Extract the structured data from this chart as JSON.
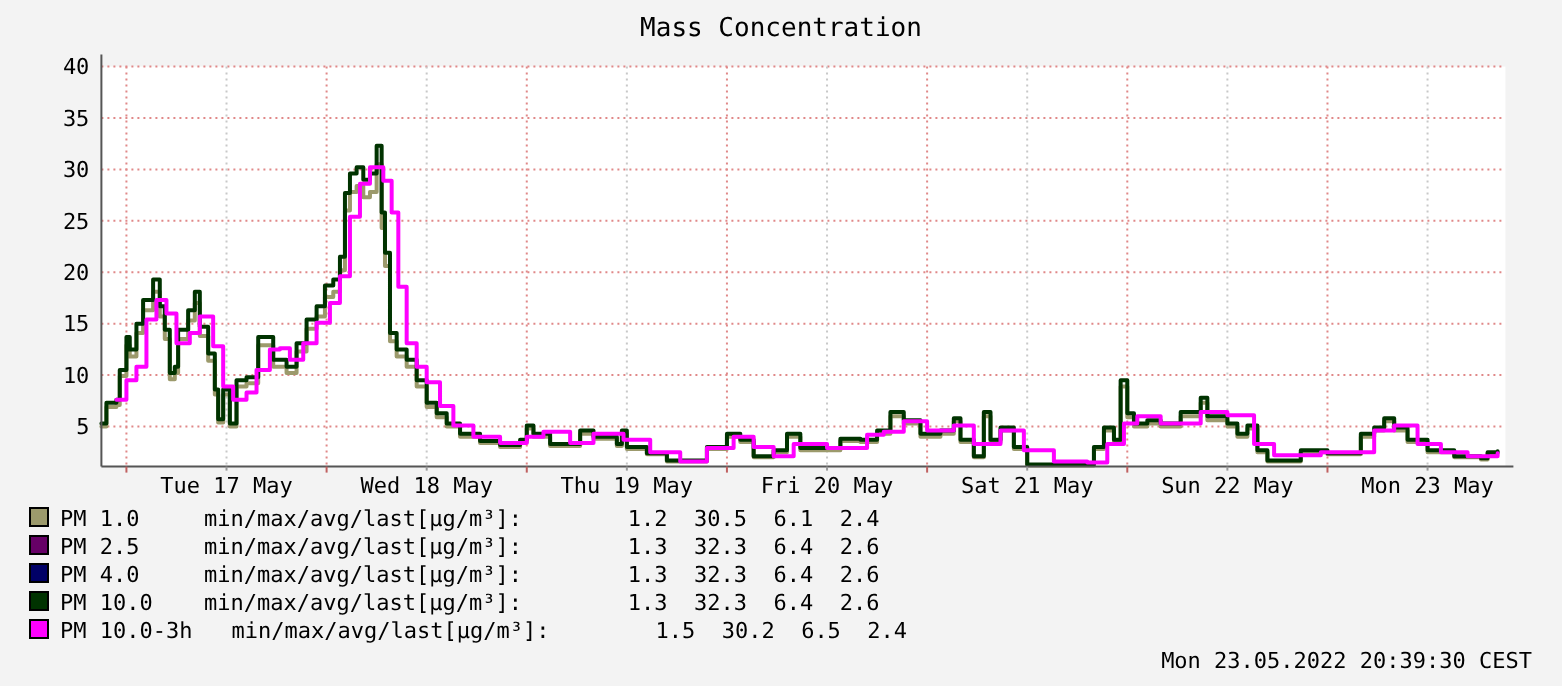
{
  "chart_data": {
    "type": "step",
    "title": "Mass Concentration",
    "xlim": [
      "2022-05-16T21:00",
      "2022-05-23T21:20"
    ],
    "xticks": [
      {
        "value": "2022-05-17T00:00",
        "label": null
      },
      {
        "value": "2022-05-17T12:00",
        "label": "Tue 17 May"
      },
      {
        "value": "2022-05-18T00:00",
        "label": null
      },
      {
        "value": "2022-05-18T12:00",
        "label": "Wed 18 May"
      },
      {
        "value": "2022-05-19T00:00",
        "label": null
      },
      {
        "value": "2022-05-19T12:00",
        "label": "Thu 19 May"
      },
      {
        "value": "2022-05-20T00:00",
        "label": null
      },
      {
        "value": "2022-05-20T12:00",
        "label": "Fri 20 May"
      },
      {
        "value": "2022-05-21T00:00",
        "label": null
      },
      {
        "value": "2022-05-21T12:00",
        "label": "Sat 21 May"
      },
      {
        "value": "2022-05-22T00:00",
        "label": null
      },
      {
        "value": "2022-05-22T12:00",
        "label": "Sun 22 May"
      },
      {
        "value": "2022-05-23T00:00",
        "label": null
      },
      {
        "value": "2022-05-23T12:00",
        "label": "Mon 23 May"
      }
    ],
    "ylim": [
      1.1,
      40
    ],
    "yticks": [
      5,
      10,
      15,
      20,
      25,
      30,
      35,
      40
    ],
    "grid": true,
    "legend": "bottom",
    "x": [
      "2022-05-16T21:00",
      "2022-05-16T21:36",
      "2022-05-16T22:48",
      "2022-05-16T23:12",
      "2022-05-17T00:00",
      "2022-05-17T00:24",
      "2022-05-17T01:12",
      "2022-05-17T02:00",
      "2022-05-17T03:12",
      "2022-05-17T04:00",
      "2022-05-17T04:36",
      "2022-05-17T05:12",
      "2022-05-17T05:48",
      "2022-05-17T06:12",
      "2022-05-17T07:24",
      "2022-05-17T08:12",
      "2022-05-17T08:48",
      "2022-05-17T09:48",
      "2022-05-17T10:36",
      "2022-05-17T11:00",
      "2022-05-17T11:36",
      "2022-05-17T12:24",
      "2022-05-17T13:12",
      "2022-05-17T14:24",
      "2022-05-17T15:48",
      "2022-05-17T17:36",
      "2022-05-17T19:12",
      "2022-05-17T20:24",
      "2022-05-17T21:36",
      "2022-05-17T22:48",
      "2022-05-17T23:48",
      "2022-05-18T00:48",
      "2022-05-18T01:36",
      "2022-05-18T02:12",
      "2022-05-18T02:48",
      "2022-05-18T03:36",
      "2022-05-18T04:24",
      "2022-05-18T05:12",
      "2022-05-18T06:00",
      "2022-05-18T06:36",
      "2022-05-18T07:00",
      "2022-05-18T07:36",
      "2022-05-18T08:24",
      "2022-05-18T09:36",
      "2022-05-18T10:48",
      "2022-05-18T12:00",
      "2022-05-18T13:12",
      "2022-05-18T14:24",
      "2022-05-18T16:00",
      "2022-05-18T18:24",
      "2022-05-18T20:48",
      "2022-05-18T23:12",
      "2022-05-19T00:00",
      "2022-05-19T00:48",
      "2022-05-19T02:48",
      "2022-05-19T06:24",
      "2022-05-19T08:00",
      "2022-05-19T10:48",
      "2022-05-19T11:24",
      "2022-05-19T12:00",
      "2022-05-19T14:24",
      "2022-05-19T16:48",
      "2022-05-19T21:36",
      "2022-05-20T00:00",
      "2022-05-20T01:36",
      "2022-05-20T03:12",
      "2022-05-20T05:36",
      "2022-05-20T07:12",
      "2022-05-20T08:48",
      "2022-05-20T13:36",
      "2022-05-20T16:00",
      "2022-05-20T18:00",
      "2022-05-20T19:36",
      "2022-05-20T21:12",
      "2022-05-20T23:12",
      "2022-05-21T01:36",
      "2022-05-21T03:12",
      "2022-05-21T04:00",
      "2022-05-21T05:36",
      "2022-05-21T06:48",
      "2022-05-21T07:36",
      "2022-05-21T08:48",
      "2022-05-21T10:24",
      "2022-05-21T12:00",
      "2022-05-21T20:00",
      "2022-05-21T21:12",
      "2022-05-21T22:24",
      "2022-05-21T23:12",
      "2022-05-22T00:00",
      "2022-05-22T00:48",
      "2022-05-22T02:24",
      "2022-05-22T04:00",
      "2022-05-22T06:24",
      "2022-05-22T08:48",
      "2022-05-22T09:36",
      "2022-05-22T12:00",
      "2022-05-22T13:12",
      "2022-05-22T14:24",
      "2022-05-22T15:36",
      "2022-05-22T16:48",
      "2022-05-22T20:48",
      "2022-05-23T00:00",
      "2022-05-23T04:00",
      "2022-05-23T05:36",
      "2022-05-23T06:48",
      "2022-05-23T08:00",
      "2022-05-23T09:36",
      "2022-05-23T12:00",
      "2022-05-23T15:12",
      "2022-05-23T18:24",
      "2022-05-23T19:12",
      "2022-05-23T20:24"
    ],
    "series": [
      {
        "name": "PM 1.0",
        "color": "#9c9a6c",
        "values": [
          5.0,
          6.9,
          7.1,
          9.9,
          12.9,
          11.8,
          14.1,
          16.3,
          18.1,
          15.7,
          13.5,
          9.6,
          10.2,
          13.5,
          15.3,
          17.0,
          13.8,
          11.4,
          8.1,
          5.4,
          8.1,
          5.0,
          8.9,
          9.2,
          12.9,
          10.8,
          10.2,
          12.3,
          14.5,
          15.7,
          17.6,
          18.1,
          20.2,
          26.0,
          27.8,
          28.4,
          27.3,
          27.8,
          30.5,
          24.3,
          20.6,
          13.3,
          11.8,
          10.8,
          8.9,
          6.9,
          5.9,
          5.0,
          4.0,
          3.4,
          3.0,
          3.5,
          4.8,
          4.0,
          3.1,
          4.3,
          3.8,
          3.1,
          4.3,
          2.8,
          2.3,
          1.6,
          2.8,
          4.0,
          3.5,
          2.0,
          2.5,
          4.0,
          2.7,
          3.6,
          3.5,
          4.3,
          6.0,
          5.3,
          4.0,
          4.3,
          5.5,
          3.5,
          2.0,
          6.0,
          3.5,
          4.6,
          2.8,
          1.2,
          2.8,
          4.6,
          3.5,
          8.9,
          5.9,
          5.0,
          5.3,
          5.0,
          6.0,
          7.3,
          5.6,
          5.0,
          4.0,
          4.8,
          2.5,
          1.6,
          2.5,
          2.3,
          4.0,
          4.6,
          5.5,
          4.6,
          3.5,
          2.5,
          2.0,
          1.8,
          2.4,
          2.4
        ]
      },
      {
        "name": "PM 2.5",
        "color": "#660066",
        "values": [
          null,
          null,
          null,
          null,
          null,
          null,
          null,
          null,
          null,
          null,
          null,
          null,
          null,
          null,
          null,
          null,
          null,
          null,
          null,
          null,
          null,
          null,
          null,
          null,
          null,
          null,
          null,
          null,
          null,
          null,
          null,
          null,
          null,
          null,
          null,
          null,
          null,
          null,
          null,
          null,
          null,
          null,
          null,
          null,
          null,
          null,
          null,
          null,
          null,
          null,
          null,
          null,
          null,
          null,
          null,
          null,
          null,
          null,
          null,
          null,
          null,
          null,
          null,
          null,
          null,
          null,
          null,
          null,
          null,
          null,
          null,
          null,
          null,
          null,
          null,
          null,
          null,
          null,
          null,
          null,
          null,
          null,
          null,
          null,
          null,
          null,
          null,
          null,
          null,
          null,
          null,
          null,
          null,
          null,
          null,
          null,
          null,
          null,
          null,
          null,
          null,
          null,
          null,
          null,
          null,
          null,
          null,
          null,
          null,
          null,
          null,
          null
        ]
      },
      {
        "name": "PM 4.0",
        "color": "#000066",
        "values": [
          null,
          null,
          null,
          null,
          null,
          null,
          null,
          null,
          null,
          null,
          null,
          null,
          null,
          null,
          null,
          null,
          null,
          null,
          null,
          null,
          null,
          null,
          null,
          null,
          null,
          null,
          null,
          null,
          null,
          null,
          null,
          null,
          null,
          null,
          null,
          null,
          null,
          null,
          null,
          null,
          null,
          null,
          null,
          null,
          null,
          null,
          null,
          null,
          null,
          null,
          null,
          null,
          null,
          null,
          null,
          null,
          null,
          null,
          null,
          null,
          null,
          null,
          null,
          null,
          null,
          null,
          null,
          null,
          null,
          null,
          null,
          null,
          null,
          null,
          null,
          null,
          null,
          null,
          null,
          null,
          null,
          null,
          null,
          null,
          null,
          null,
          null,
          null,
          null,
          null,
          null,
          null,
          null,
          null,
          null,
          null,
          null,
          null,
          null,
          null,
          null,
          null,
          null,
          null,
          null,
          null,
          null,
          null,
          null,
          null,
          null,
          null
        ]
      },
      {
        "name": "PM 10.0",
        "color": "#003300",
        "values": [
          5.3,
          7.3,
          7.6,
          10.5,
          13.7,
          12.5,
          15.0,
          17.3,
          19.3,
          16.7,
          14.4,
          10.2,
          10.8,
          14.4,
          16.3,
          18.1,
          14.7,
          12.1,
          8.6,
          5.7,
          8.6,
          5.3,
          9.5,
          9.8,
          13.7,
          11.5,
          10.8,
          13.1,
          15.4,
          16.7,
          18.7,
          19.3,
          21.5,
          27.7,
          29.6,
          30.2,
          29.0,
          29.6,
          32.3,
          25.8,
          21.9,
          14.1,
          12.5,
          11.5,
          9.5,
          7.3,
          6.3,
          5.3,
          4.3,
          3.6,
          3.2,
          3.7,
          5.1,
          4.3,
          3.3,
          4.6,
          4.0,
          3.3,
          4.6,
          3.0,
          2.4,
          1.7,
          3.0,
          4.3,
          3.7,
          2.1,
          2.7,
          4.3,
          2.9,
          3.8,
          3.7,
          4.6,
          6.4,
          5.6,
          4.3,
          4.6,
          5.8,
          3.7,
          2.1,
          6.4,
          3.7,
          4.9,
          3.0,
          1.3,
          3.0,
          4.9,
          3.7,
          9.5,
          6.3,
          5.3,
          5.6,
          5.3,
          6.4,
          7.8,
          6.0,
          5.3,
          4.3,
          5.1,
          2.7,
          1.7,
          2.7,
          2.4,
          4.3,
          4.9,
          5.8,
          4.9,
          3.7,
          2.7,
          2.1,
          1.9,
          2.5,
          2.6
        ]
      },
      {
        "name": "PM 10.0-3h",
        "color": "#ff00ff",
        "x": [
          "2022-05-16T22:48",
          "2022-05-17T00:00",
          "2022-05-17T01:12",
          "2022-05-17T02:24",
          "2022-05-17T03:36",
          "2022-05-17T04:48",
          "2022-05-17T06:00",
          "2022-05-17T07:36",
          "2022-05-17T08:48",
          "2022-05-17T10:24",
          "2022-05-17T11:36",
          "2022-05-17T12:48",
          "2022-05-17T14:24",
          "2022-05-17T15:36",
          "2022-05-17T17:12",
          "2022-05-17T18:24",
          "2022-05-17T19:36",
          "2022-05-17T21:12",
          "2022-05-17T22:48",
          "2022-05-18T00:24",
          "2022-05-18T01:36",
          "2022-05-18T02:48",
          "2022-05-18T04:00",
          "2022-05-18T05:12",
          "2022-05-18T06:48",
          "2022-05-18T07:48",
          "2022-05-18T08:36",
          "2022-05-18T09:36",
          "2022-05-18T10:48",
          "2022-05-18T12:00",
          "2022-05-18T13:36",
          "2022-05-18T15:12",
          "2022-05-18T17:36",
          "2022-05-18T20:48",
          "2022-05-19T00:00",
          "2022-05-19T02:00",
          "2022-05-19T05:12",
          "2022-05-19T08:00",
          "2022-05-19T11:36",
          "2022-05-19T14:48",
          "2022-05-19T18:24",
          "2022-05-19T21:36",
          "2022-05-20T00:48",
          "2022-05-20T03:12",
          "2022-05-20T05:36",
          "2022-05-20T08:00",
          "2022-05-20T12:00",
          "2022-05-20T16:48",
          "2022-05-20T18:48",
          "2022-05-20T21:12",
          "2022-05-21T00:00",
          "2022-05-21T03:12",
          "2022-05-21T05:36",
          "2022-05-21T08:48",
          "2022-05-21T11:36",
          "2022-05-21T15:12",
          "2022-05-21T19:12",
          "2022-05-21T21:36",
          "2022-05-21T23:36",
          "2022-05-22T01:12",
          "2022-05-22T04:00",
          "2022-05-22T08:48",
          "2022-05-22T12:00",
          "2022-05-22T15:12",
          "2022-05-22T17:36",
          "2022-05-22T23:12",
          "2022-05-23T02:24",
          "2022-05-23T05:36",
          "2022-05-23T08:00",
          "2022-05-23T10:48",
          "2022-05-23T13:36",
          "2022-05-23T16:48",
          "2022-05-23T20:24"
        ],
        "values": [
          7.6,
          9.5,
          10.8,
          15.4,
          17.3,
          16.0,
          13.1,
          14.1,
          15.7,
          12.8,
          8.9,
          7.6,
          8.3,
          10.5,
          12.5,
          12.6,
          11.5,
          13.1,
          15.1,
          17.0,
          19.6,
          25.4,
          28.6,
          30.2,
          28.9,
          25.8,
          18.6,
          13.1,
          10.8,
          9.3,
          7.0,
          5.1,
          4.0,
          3.4,
          4.0,
          4.5,
          3.4,
          4.3,
          3.7,
          2.5,
          1.6,
          2.9,
          4.0,
          3.0,
          2.1,
          3.3,
          2.9,
          4.2,
          4.5,
          5.5,
          4.6,
          5.1,
          3.3,
          4.6,
          2.7,
          1.6,
          1.5,
          3.3,
          5.3,
          6.0,
          5.3,
          6.4,
          6.1,
          3.3,
          2.2,
          2.5,
          2.5,
          4.6,
          5.1,
          3.3,
          2.5,
          2.1,
          2.4
        ]
      }
    ],
    "annotations": [
      "min/max/avg/last[µg/m³]:        1.2  30.5  6.1  2.4",
      "min/max/avg/last[µg/m³]:        1.3  32.3  6.4  2.6",
      "min/max/avg/last[µg/m³]:        1.3  32.3  6.4  2.6",
      "min/max/avg/last[µg/m³]:        1.3  32.3  6.4  2.6",
      "min/max/avg/last[µg/m³]:        1.5  30.2  6.5  2.4",
      "Mon 23.05.2022 20:39:30 CEST"
    ]
  }
}
